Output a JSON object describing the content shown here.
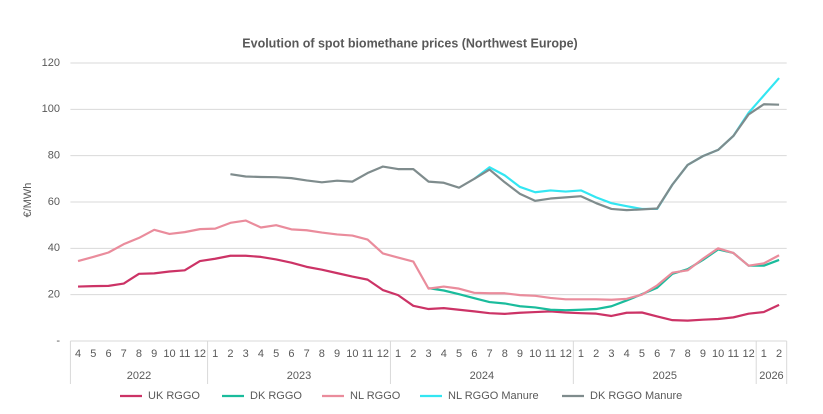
{
  "chart_data": {
    "type": "line",
    "title": "Evolution of spot biomethane prices (Northwest Europe)",
    "y_label": "€/MWh",
    "categories": [
      "4",
      "5",
      "6",
      "7",
      "8",
      "9",
      "10",
      "11",
      "12",
      "1",
      "2",
      "3",
      "4",
      "5",
      "6",
      "7",
      "8",
      "9",
      "10",
      "11",
      "12",
      "1",
      "2",
      "3",
      "4",
      "5",
      "6",
      "7",
      "8",
      "9",
      "10",
      "11",
      "12",
      "1",
      "2",
      "3",
      "4",
      "5",
      "6",
      "7",
      "8",
      "9",
      "10",
      "11",
      "12",
      "1",
      "2"
    ],
    "years": [
      "2022",
      "2023",
      "2024",
      "2025",
      "2026"
    ],
    "ylim": [
      0,
      120
    ],
    "yticks": [
      {
        "value": 0,
        "label": "-"
      },
      20,
      40,
      60,
      80,
      100,
      120
    ],
    "grid": true,
    "legend": "bottom",
    "series": [
      {
        "name": "UK RGGO",
        "color": "#cc3366",
        "values": [
          23.5,
          23.7,
          23.8,
          24.8,
          29,
          29.2,
          30,
          30.5,
          34.5,
          35.5,
          36.8,
          36.8,
          36.3,
          35.2,
          33.8,
          32,
          30.8,
          29.3,
          27.8,
          26.5,
          22,
          19.8,
          15.2,
          13.8,
          14.2,
          13.5,
          12.8,
          12,
          11.7,
          12.2,
          12.5,
          12.8,
          12.3,
          12,
          11.8,
          10.8,
          12.2,
          12.3,
          10.6,
          9,
          8.8,
          9.2,
          9.5,
          10.2,
          11.8,
          12.5,
          15.6
        ]
      },
      {
        "name": "DK RGGO",
        "color": "#1abc9c",
        "values": [
          null,
          null,
          null,
          null,
          null,
          null,
          null,
          null,
          null,
          null,
          null,
          null,
          null,
          null,
          null,
          null,
          null,
          null,
          null,
          null,
          null,
          null,
          null,
          22.8,
          21.8,
          20.2,
          18.5,
          16.8,
          16.2,
          15,
          14.5,
          13.5,
          13.3,
          13.5,
          13.8,
          15,
          17.5,
          20.2,
          23,
          29,
          31,
          35,
          39.5,
          38,
          32.5,
          32.5,
          35
        ]
      },
      {
        "name": "NL RGGO",
        "color": "#ea8c9c",
        "values": [
          34.5,
          36.3,
          38.2,
          41.8,
          44.5,
          48,
          46.2,
          47,
          48.3,
          48.5,
          51,
          52,
          49,
          50,
          48.2,
          47.8,
          46.8,
          46,
          45.5,
          43.8,
          37.8,
          36,
          34.3,
          22.6,
          23.5,
          22.6,
          20.8,
          20.6,
          20.6,
          19.8,
          19.5,
          18.6,
          18,
          18,
          18,
          17.8,
          18.2,
          20,
          24,
          29.5,
          30.5,
          35.5,
          40,
          38,
          32.5,
          33.5,
          37
        ]
      },
      {
        "name": "NL RGGO Manure",
        "color": "#33e6f2",
        "values": [
          null,
          null,
          null,
          null,
          null,
          null,
          null,
          null,
          null,
          null,
          null,
          null,
          null,
          null,
          null,
          null,
          null,
          null,
          null,
          null,
          null,
          null,
          null,
          null,
          null,
          null,
          70,
          75,
          71.5,
          66.5,
          64.2,
          65,
          64.5,
          65,
          62,
          59.5,
          58.2,
          57,
          57,
          67.5,
          76,
          79.8,
          82.5,
          88.5,
          98.5,
          106,
          113.5
        ]
      },
      {
        "name": "DK RGGO Manure",
        "color": "#7f8c8d",
        "values": [
          null,
          null,
          null,
          null,
          null,
          null,
          null,
          null,
          null,
          null,
          72,
          71,
          70.8,
          70.7,
          70.3,
          69.3,
          68.5,
          69.2,
          68.8,
          72.5,
          75.3,
          74.2,
          74.2,
          68.8,
          68.3,
          66.2,
          70,
          74,
          68.5,
          63.5,
          60.5,
          61.5,
          62,
          62.5,
          59.5,
          57,
          56.5,
          56.8,
          57.2,
          67.5,
          76,
          79.8,
          82.5,
          88.5,
          97.8,
          102.2,
          102
        ]
      }
    ]
  }
}
